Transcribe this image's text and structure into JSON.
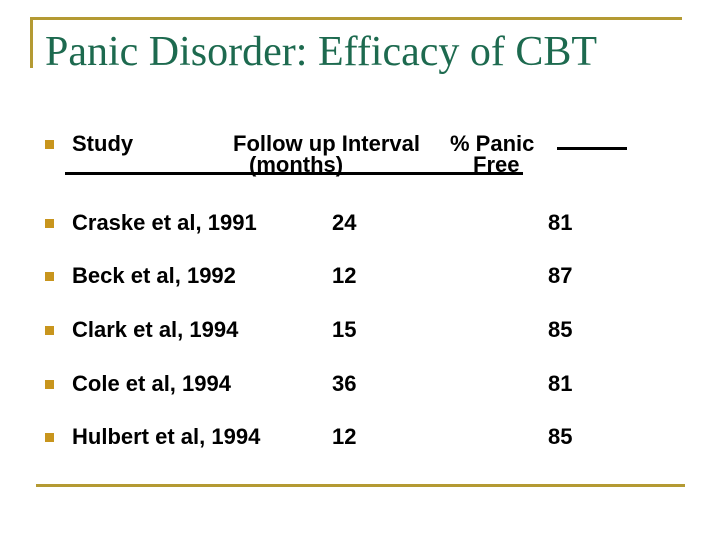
{
  "slide": {
    "title": "Panic Disorder: Efficacy of CBT"
  },
  "colors": {
    "title_green": "#1d6a4f",
    "gold_rule": "#b49a33",
    "bullet_gold": "#c8951d",
    "body_text": "#000000"
  },
  "table": {
    "header": {
      "study": "Study",
      "interval_line1": "Follow up Interval",
      "interval_line2": "(months)",
      "panic_line1": "% Panic",
      "panic_line2": "Free"
    },
    "rows": [
      {
        "study": "Craske et al, 1991",
        "interval": "24",
        "panic_free": "81"
      },
      {
        "study": "Beck et al, 1992",
        "interval": "12",
        "panic_free": "87"
      },
      {
        "study": "Clark et al, 1994",
        "interval": "15",
        "panic_free": "85"
      },
      {
        "study": "Cole et al, 1994",
        "interval": "36",
        "panic_free": "81"
      },
      {
        "study": "Hulbert et al, 1994",
        "interval": "12",
        "panic_free": "85"
      }
    ]
  }
}
